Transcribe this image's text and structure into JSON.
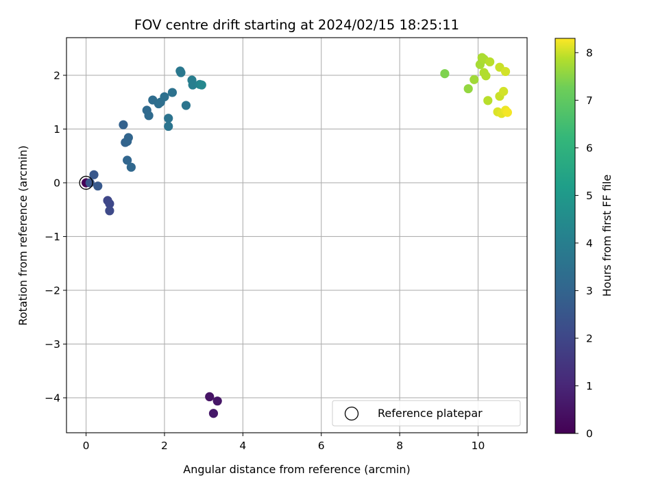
{
  "chart_data": {
    "type": "scatter",
    "title": "FOV centre drift starting at 2024/02/15 18:25:11",
    "xlabel": "Angular distance from reference (arcmin)",
    "ylabel": "Rotation from reference (arcmin)",
    "xlim": [
      -0.5,
      11.25
    ],
    "ylim": [
      -4.65,
      2.7
    ],
    "xticks": [
      0,
      2,
      4,
      6,
      8,
      10
    ],
    "xtick_labels": [
      "0",
      "2",
      "4",
      "6",
      "8",
      "10"
    ],
    "yticks": [
      -4,
      -3,
      -2,
      -1,
      0,
      1,
      2
    ],
    "ytick_labels": [
      "−4",
      "−3",
      "−2",
      "−1",
      "0",
      "1",
      "2"
    ],
    "grid": true,
    "colormap": "viridis",
    "colorbar": {
      "label": "Hours from first FF file",
      "range": [
        0,
        8.3
      ],
      "ticks": [
        0,
        1,
        2,
        3,
        4,
        5,
        6,
        7,
        8
      ],
      "tick_labels": [
        "0",
        "1",
        "2",
        "3",
        "4",
        "5",
        "6",
        "7",
        "8"
      ]
    },
    "legend": {
      "position": "lower-right",
      "entries": [
        {
          "label": "Reference platepar",
          "marker": "open-circle"
        }
      ]
    },
    "reference_point": {
      "x": 0,
      "y": 0
    },
    "points": [
      {
        "x": 0.0,
        "y": 0.0,
        "c": 0.05
      },
      {
        "x": 3.15,
        "y": -3.98,
        "c": 0.5
      },
      {
        "x": 3.35,
        "y": -4.06,
        "c": 0.55
      },
      {
        "x": 3.25,
        "y": -4.29,
        "c": 0.6
      },
      {
        "x": 0.55,
        "y": -0.33,
        "c": 2.0
      },
      {
        "x": 0.6,
        "y": -0.39,
        "c": 2.05
      },
      {
        "x": 0.6,
        "y": -0.52,
        "c": 2.1
      },
      {
        "x": 0.1,
        "y": 0.0,
        "c": 2.5
      },
      {
        "x": 0.2,
        "y": 0.15,
        "c": 2.55
      },
      {
        "x": 0.3,
        "y": -0.06,
        "c": 2.6
      },
      {
        "x": 0.95,
        "y": 1.08,
        "c": 2.9
      },
      {
        "x": 1.0,
        "y": 0.75,
        "c": 2.95
      },
      {
        "x": 1.05,
        "y": 0.77,
        "c": 3.0
      },
      {
        "x": 1.08,
        "y": 0.84,
        "c": 3.0
      },
      {
        "x": 1.05,
        "y": 0.42,
        "c": 3.05
      },
      {
        "x": 1.15,
        "y": 0.29,
        "c": 3.1
      },
      {
        "x": 1.55,
        "y": 1.35,
        "c": 3.2
      },
      {
        "x": 1.6,
        "y": 1.25,
        "c": 3.25
      },
      {
        "x": 1.7,
        "y": 1.54,
        "c": 3.3
      },
      {
        "x": 1.85,
        "y": 1.47,
        "c": 3.35
      },
      {
        "x": 1.9,
        "y": 1.5,
        "c": 3.4
      },
      {
        "x": 2.0,
        "y": 1.6,
        "c": 3.45
      },
      {
        "x": 2.1,
        "y": 1.2,
        "c": 3.55
      },
      {
        "x": 2.1,
        "y": 1.05,
        "c": 3.6
      },
      {
        "x": 2.2,
        "y": 1.68,
        "c": 3.5
      },
      {
        "x": 2.55,
        "y": 1.44,
        "c": 3.65
      },
      {
        "x": 2.4,
        "y": 2.08,
        "c": 3.7
      },
      {
        "x": 2.42,
        "y": 2.05,
        "c": 3.75
      },
      {
        "x": 2.7,
        "y": 1.91,
        "c": 3.95
      },
      {
        "x": 2.72,
        "y": 1.82,
        "c": 4.0
      },
      {
        "x": 2.9,
        "y": 1.83,
        "c": 4.2
      },
      {
        "x": 2.95,
        "y": 1.82,
        "c": 4.35
      },
      {
        "x": 9.15,
        "y": 2.03,
        "c": 7.4
      },
      {
        "x": 9.75,
        "y": 1.75,
        "c": 7.6
      },
      {
        "x": 9.9,
        "y": 1.92,
        "c": 7.7
      },
      {
        "x": 10.05,
        "y": 2.2,
        "c": 7.75
      },
      {
        "x": 10.1,
        "y": 2.33,
        "c": 7.8
      },
      {
        "x": 10.15,
        "y": 2.3,
        "c": 7.8
      },
      {
        "x": 10.15,
        "y": 2.05,
        "c": 7.85
      },
      {
        "x": 10.2,
        "y": 1.99,
        "c": 7.85
      },
      {
        "x": 10.25,
        "y": 1.53,
        "c": 7.9
      },
      {
        "x": 10.3,
        "y": 2.25,
        "c": 7.9
      },
      {
        "x": 10.55,
        "y": 2.15,
        "c": 8.0
      },
      {
        "x": 10.7,
        "y": 2.07,
        "c": 8.05
      },
      {
        "x": 10.55,
        "y": 1.61,
        "c": 8.0
      },
      {
        "x": 10.65,
        "y": 1.7,
        "c": 8.05
      },
      {
        "x": 10.5,
        "y": 1.32,
        "c": 8.1
      },
      {
        "x": 10.6,
        "y": 1.29,
        "c": 8.15
      },
      {
        "x": 10.7,
        "y": 1.35,
        "c": 8.2
      },
      {
        "x": 10.75,
        "y": 1.31,
        "c": 8.25
      }
    ]
  }
}
